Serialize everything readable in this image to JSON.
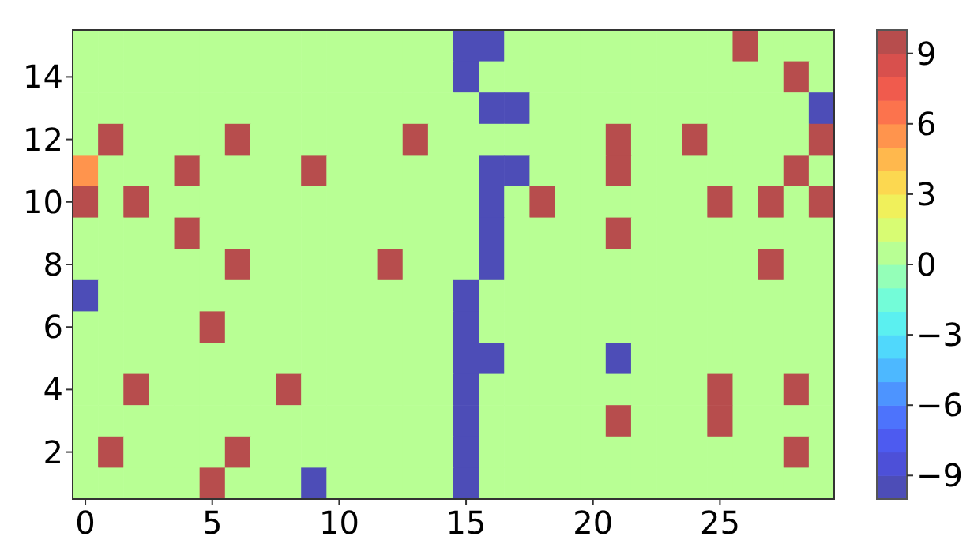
{
  "chart_data": {
    "type": "heatmap",
    "categories": [
      "0",
      null,
      null,
      null,
      null,
      "5",
      null,
      null,
      null,
      null,
      "10",
      null,
      null,
      null,
      null,
      "15",
      null,
      null,
      null,
      null,
      "20",
      null,
      null,
      null,
      null,
      "25",
      null,
      null,
      null,
      null
    ],
    "y_categories": [
      null,
      "14",
      null,
      "12",
      null,
      "10",
      null,
      "8",
      null,
      "6",
      null,
      "4",
      null,
      "2",
      null
    ],
    "cells": [
      [
        0,
        0,
        0,
        0,
        0,
        0,
        0,
        0,
        0,
        0,
        0,
        0,
        0,
        0,
        0,
        -10,
        -10,
        0,
        0,
        0,
        0,
        0,
        0,
        0,
        0,
        0,
        10,
        0,
        0,
        0
      ],
      [
        0,
        0,
        0,
        0,
        0,
        0,
        0,
        0,
        0,
        0,
        0,
        0,
        0,
        0,
        0,
        -10,
        0,
        0,
        0,
        0,
        0,
        0,
        0,
        0,
        0,
        0,
        0,
        0,
        10,
        0
      ],
      [
        0,
        0,
        0,
        0,
        0,
        0,
        0,
        0,
        0,
        0,
        0,
        0,
        0,
        0,
        0,
        0,
        -10,
        -10,
        0,
        0,
        0,
        0,
        0,
        0,
        0,
        0,
        0,
        0,
        0,
        -10
      ],
      [
        0,
        10,
        0,
        0,
        0,
        0,
        10,
        0,
        0,
        0,
        0,
        0,
        0,
        10,
        0,
        0,
        0,
        0,
        0,
        0,
        0,
        10,
        0,
        0,
        10,
        0,
        0,
        0,
        0,
        10
      ],
      [
        5,
        0,
        0,
        0,
        10,
        0,
        0,
        0,
        0,
        10,
        0,
        0,
        0,
        0,
        0,
        0,
        -10,
        -10,
        0,
        0,
        0,
        10,
        0,
        0,
        0,
        0,
        0,
        0,
        10,
        0
      ],
      [
        10,
        0,
        10,
        0,
        0,
        0,
        0,
        0,
        0,
        0,
        0,
        0,
        0,
        0,
        0,
        0,
        -10,
        0,
        10,
        0,
        0,
        0,
        0,
        0,
        0,
        10,
        0,
        10,
        0,
        10
      ],
      [
        0,
        0,
        0,
        0,
        10,
        0,
        0,
        0,
        0,
        0,
        0,
        0,
        0,
        0,
        0,
        0,
        -10,
        0,
        0,
        0,
        0,
        10,
        0,
        0,
        0,
        0,
        0,
        0,
        0,
        0
      ],
      [
        0,
        0,
        0,
        0,
        0,
        0,
        10,
        0,
        0,
        0,
        0,
        0,
        10,
        0,
        0,
        0,
        -10,
        0,
        0,
        0,
        0,
        0,
        0,
        0,
        0,
        0,
        0,
        10,
        0,
        0
      ],
      [
        -10,
        0,
        0,
        0,
        0,
        0,
        0,
        0,
        0,
        0,
        0,
        0,
        0,
        0,
        0,
        -10,
        0,
        0,
        0,
        0,
        0,
        0,
        0,
        0,
        0,
        0,
        0,
        0,
        0,
        0
      ],
      [
        0,
        0,
        0,
        0,
        0,
        10,
        0,
        0,
        0,
        0,
        0,
        0,
        0,
        0,
        0,
        -10,
        0,
        0,
        0,
        0,
        0,
        0,
        0,
        0,
        0,
        0,
        0,
        0,
        0,
        0
      ],
      [
        0,
        0,
        0,
        0,
        0,
        0,
        0,
        0,
        0,
        0,
        0,
        0,
        0,
        0,
        0,
        -10,
        -10,
        0,
        0,
        0,
        0,
        -10,
        0,
        0,
        0,
        0,
        0,
        0,
        0,
        0
      ],
      [
        0,
        0,
        10,
        0,
        0,
        0,
        0,
        0,
        10,
        0,
        0,
        0,
        0,
        0,
        0,
        -10,
        0,
        0,
        0,
        0,
        0,
        0,
        0,
        0,
        0,
        10,
        0,
        0,
        10,
        0
      ],
      [
        0,
        0,
        0,
        0,
        0,
        0,
        0,
        0,
        0,
        0,
        0,
        0,
        0,
        0,
        0,
        -10,
        0,
        0,
        0,
        0,
        0,
        10,
        0,
        0,
        0,
        10,
        0,
        0,
        0,
        0
      ],
      [
        0,
        10,
        0,
        0,
        0,
        0,
        10,
        0,
        0,
        0,
        0,
        0,
        0,
        0,
        0,
        -10,
        0,
        0,
        0,
        0,
        0,
        0,
        0,
        0,
        0,
        0,
        0,
        0,
        10,
        0
      ],
      [
        0,
        0,
        0,
        0,
        0,
        10,
        0,
        0,
        0,
        -10,
        0,
        0,
        0,
        0,
        0,
        -10,
        0,
        0,
        0,
        0,
        0,
        0,
        0,
        0,
        0,
        0,
        0,
        0,
        0,
        0
      ]
    ],
    "clim": [
      -10,
      10
    ],
    "cticks": [
      {
        "value": -9,
        "label": "−9"
      },
      {
        "value": -6,
        "label": "−6"
      },
      {
        "value": -3,
        "label": "−3"
      },
      0,
      3,
      6,
      9
    ]
  }
}
